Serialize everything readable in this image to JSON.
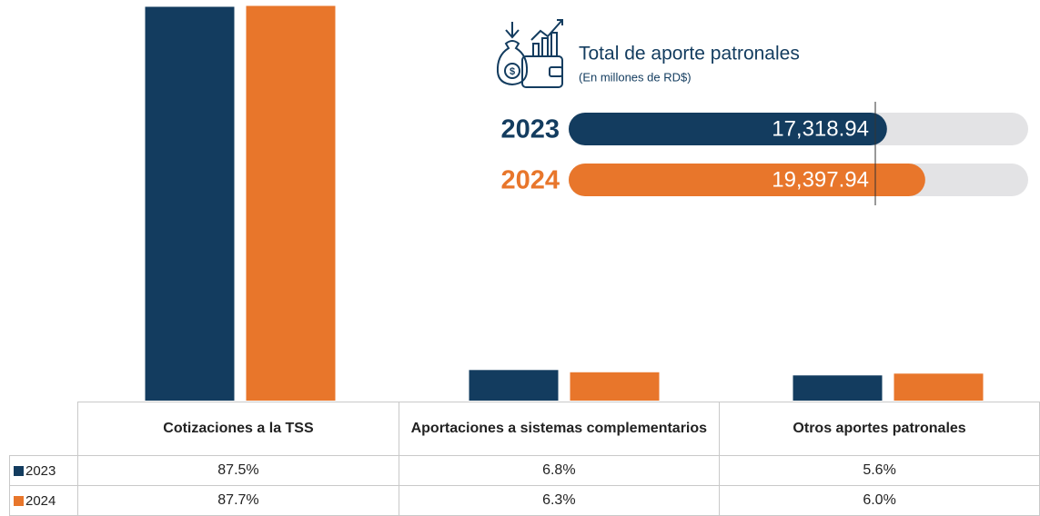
{
  "chart_data": [
    {
      "type": "bar",
      "categories": [
        "Cotizaciones a la TSS",
        "Aportaciones a sistemas complementarios",
        "Otros aportes patronales"
      ],
      "series": [
        {
          "name": "2023",
          "color": "#133c5f",
          "values": [
            87.5,
            6.8,
            5.6
          ],
          "value_labels": [
            "87.5%",
            "6.8%",
            "5.6%"
          ]
        },
        {
          "name": "2024",
          "color": "#e8762b",
          "values": [
            87.7,
            6.3,
            6.0
          ],
          "value_labels": [
            "87.7%",
            "6.3%",
            "6.0%"
          ]
        }
      ],
      "ylim": [
        0,
        88
      ]
    },
    {
      "type": "hbar",
      "title": "Total de aporte patronales",
      "subtitle": "(En millones de RD$)",
      "categories": [
        "2023",
        "2024"
      ],
      "values": [
        17318.94,
        19397.94
      ],
      "value_labels": [
        "17,318.94",
        "19,397.94"
      ],
      "colors": [
        "#133c5f",
        "#e8762b"
      ],
      "xlim": [
        0,
        25000
      ]
    }
  ]
}
